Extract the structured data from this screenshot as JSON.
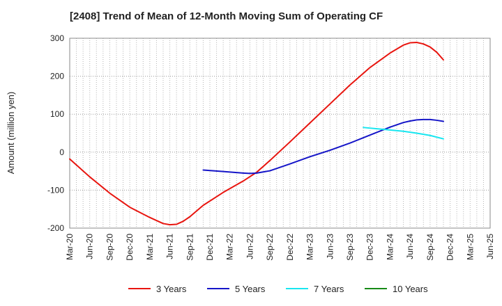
{
  "chart_data": {
    "type": "line",
    "title": "[2408]  Trend of Mean of 12-Month Moving Sum of Operating CF",
    "xlabel": "",
    "ylabel": "Amount (million yen)",
    "ylim": [
      -200,
      300
    ],
    "yticks": [
      -200,
      -100,
      0,
      100,
      200,
      300
    ],
    "grid": true,
    "legend_position": "bottom",
    "x_start": "Mar-20",
    "x_end": "Jun-25",
    "months_span": 63,
    "tick_labels": [
      "Mar-20",
      "Jun-20",
      "Sep-20",
      "Dec-20",
      "Mar-21",
      "Jun-21",
      "Sep-21",
      "Dec-21",
      "Mar-22",
      "Jun-22",
      "Sep-22",
      "Dec-22",
      "Mar-23",
      "Jun-23",
      "Sep-23",
      "Dec-23",
      "Mar-24",
      "Jun-24",
      "Sep-24",
      "Dec-24",
      "Mar-25",
      "Jun-25"
    ],
    "series": [
      {
        "name": "3 Years",
        "color": "#e8150f",
        "points": [
          [
            0,
            -18
          ],
          [
            3,
            -65
          ],
          [
            6,
            -108
          ],
          [
            9,
            -145
          ],
          [
            12,
            -172
          ],
          [
            14,
            -188
          ],
          [
            15,
            -191
          ],
          [
            16,
            -190
          ],
          [
            17,
            -182
          ],
          [
            18,
            -170
          ],
          [
            20,
            -140
          ],
          [
            23,
            -106
          ],
          [
            26,
            -76
          ],
          [
            28,
            -53
          ],
          [
            30,
            -22
          ],
          [
            33,
            27
          ],
          [
            36,
            77
          ],
          [
            39,
            127
          ],
          [
            42,
            177
          ],
          [
            45,
            223
          ],
          [
            48,
            261
          ],
          [
            50,
            282
          ],
          [
            51,
            288
          ],
          [
            52,
            289
          ],
          [
            53,
            285
          ],
          [
            54,
            277
          ],
          [
            55,
            263
          ],
          [
            56,
            243
          ]
        ]
      },
      {
        "name": "5 Years",
        "color": "#1515c8",
        "points": [
          [
            20,
            -47
          ],
          [
            23,
            -51
          ],
          [
            26,
            -55
          ],
          [
            27,
            -56
          ],
          [
            28,
            -55
          ],
          [
            30,
            -49
          ],
          [
            33,
            -31
          ],
          [
            36,
            -12
          ],
          [
            39,
            5
          ],
          [
            42,
            24
          ],
          [
            45,
            45
          ],
          [
            48,
            66
          ],
          [
            50,
            78
          ],
          [
            51,
            82
          ],
          [
            52,
            85
          ],
          [
            53,
            86
          ],
          [
            54,
            86
          ],
          [
            55,
            84
          ],
          [
            56,
            81
          ]
        ]
      },
      {
        "name": "7 Years",
        "color": "#18e6f0",
        "points": [
          [
            44,
            65
          ],
          [
            47,
            60
          ],
          [
            50,
            55
          ],
          [
            52,
            50
          ],
          [
            54,
            44
          ],
          [
            56,
            35
          ]
        ]
      },
      {
        "name": "10 Years",
        "color": "#168a16",
        "points": []
      }
    ]
  }
}
